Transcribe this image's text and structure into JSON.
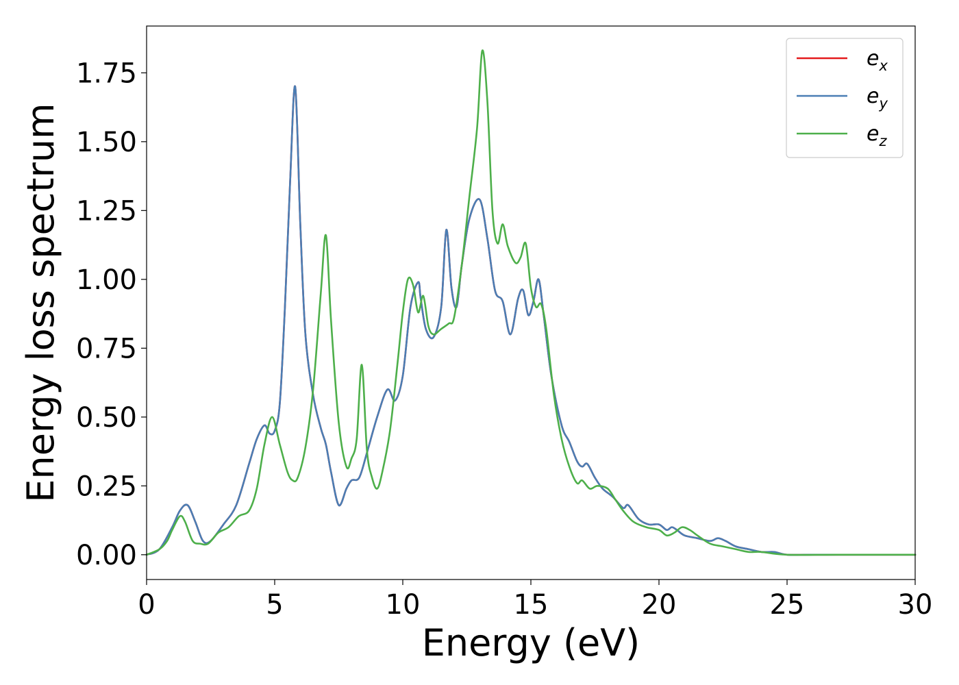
{
  "chart_data": {
    "type": "line",
    "xlabel": "Energy (eV)",
    "ylabel": "Energy loss spectrum",
    "xlim": [
      0,
      30
    ],
    "ylim": [
      -0.09,
      1.92
    ],
    "xticks": [
      0,
      5,
      10,
      15,
      20,
      25,
      30
    ],
    "xtick_labels": [
      "0",
      "5",
      "10",
      "15",
      "20",
      "25",
      "30"
    ],
    "yticks": [
      0.0,
      0.25,
      0.5,
      0.75,
      1.0,
      1.25,
      1.5,
      1.75
    ],
    "ytick_labels": [
      "0.00",
      "0.25",
      "0.50",
      "0.75",
      "1.00",
      "1.25",
      "1.50",
      "1.75"
    ],
    "grid": false,
    "legend_position": "top-right",
    "series": [
      {
        "name": "e",
        "sub": "x",
        "color": "#e41a1c",
        "x": [
          0,
          0.5,
          1.0,
          1.3,
          1.6,
          1.9,
          2.2,
          2.5,
          3.0,
          3.5,
          4.0,
          4.3,
          4.6,
          4.8,
          5.0,
          5.2,
          5.4,
          5.6,
          5.8,
          6.0,
          6.2,
          6.5,
          6.8,
          7.0,
          7.2,
          7.5,
          7.8,
          8.0,
          8.3,
          8.6,
          9.0,
          9.4,
          9.7,
          10.0,
          10.3,
          10.6,
          10.7,
          10.9,
          11.2,
          11.5,
          11.7,
          11.9,
          12.1,
          12.3,
          12.6,
          13.0,
          13.3,
          13.6,
          13.9,
          14.2,
          14.5,
          14.7,
          14.9,
          15.1,
          15.3,
          15.5,
          15.8,
          16.2,
          16.5,
          16.8,
          17.0,
          17.2,
          17.5,
          17.8,
          18.2,
          18.6,
          18.8,
          19.2,
          19.6,
          20.0,
          20.3,
          20.5,
          20.7,
          21.0,
          21.5,
          22.0,
          22.3,
          22.6,
          23.0,
          23.5,
          24.0,
          24.5,
          25.0,
          26.0,
          28.0,
          30.0
        ],
        "y": [
          0.0,
          0.02,
          0.1,
          0.16,
          0.18,
          0.12,
          0.05,
          0.05,
          0.11,
          0.18,
          0.33,
          0.42,
          0.47,
          0.44,
          0.45,
          0.55,
          0.9,
          1.35,
          1.7,
          1.2,
          0.8,
          0.58,
          0.46,
          0.4,
          0.3,
          0.18,
          0.24,
          0.27,
          0.28,
          0.37,
          0.5,
          0.6,
          0.56,
          0.65,
          0.9,
          0.99,
          0.93,
          0.82,
          0.79,
          0.9,
          1.18,
          0.97,
          0.9,
          1.05,
          1.22,
          1.29,
          1.15,
          0.96,
          0.92,
          0.8,
          0.93,
          0.96,
          0.87,
          0.92,
          1.0,
          0.87,
          0.65,
          0.47,
          0.41,
          0.34,
          0.32,
          0.33,
          0.28,
          0.24,
          0.21,
          0.17,
          0.18,
          0.13,
          0.11,
          0.11,
          0.09,
          0.1,
          0.09,
          0.07,
          0.06,
          0.05,
          0.06,
          0.05,
          0.03,
          0.02,
          0.01,
          0.01,
          0.0,
          0.0,
          0.0,
          0.0
        ]
      },
      {
        "name": "e",
        "sub": "y",
        "color": "#4a7eb4",
        "x": [
          0,
          0.5,
          1.0,
          1.3,
          1.6,
          1.9,
          2.2,
          2.5,
          3.0,
          3.5,
          4.0,
          4.3,
          4.6,
          4.8,
          5.0,
          5.2,
          5.4,
          5.6,
          5.8,
          6.0,
          6.2,
          6.5,
          6.8,
          7.0,
          7.2,
          7.5,
          7.8,
          8.0,
          8.3,
          8.6,
          9.0,
          9.4,
          9.7,
          10.0,
          10.3,
          10.6,
          10.7,
          10.9,
          11.2,
          11.5,
          11.7,
          11.9,
          12.1,
          12.3,
          12.6,
          13.0,
          13.3,
          13.6,
          13.9,
          14.2,
          14.5,
          14.7,
          14.9,
          15.1,
          15.3,
          15.5,
          15.8,
          16.2,
          16.5,
          16.8,
          17.0,
          17.2,
          17.5,
          17.8,
          18.2,
          18.6,
          18.8,
          19.2,
          19.6,
          20.0,
          20.3,
          20.5,
          20.7,
          21.0,
          21.5,
          22.0,
          22.3,
          22.6,
          23.0,
          23.5,
          24.0,
          24.5,
          25.0,
          26.0,
          28.0,
          30.0
        ],
        "y": [
          0.0,
          0.02,
          0.1,
          0.16,
          0.18,
          0.12,
          0.05,
          0.05,
          0.11,
          0.18,
          0.33,
          0.42,
          0.47,
          0.44,
          0.45,
          0.55,
          0.9,
          1.35,
          1.7,
          1.2,
          0.8,
          0.58,
          0.46,
          0.4,
          0.3,
          0.18,
          0.24,
          0.27,
          0.28,
          0.37,
          0.5,
          0.6,
          0.56,
          0.65,
          0.9,
          0.99,
          0.93,
          0.82,
          0.79,
          0.9,
          1.18,
          0.97,
          0.9,
          1.05,
          1.22,
          1.29,
          1.15,
          0.96,
          0.92,
          0.8,
          0.93,
          0.96,
          0.87,
          0.92,
          1.0,
          0.87,
          0.65,
          0.47,
          0.41,
          0.34,
          0.32,
          0.33,
          0.28,
          0.24,
          0.21,
          0.17,
          0.18,
          0.13,
          0.11,
          0.11,
          0.09,
          0.1,
          0.09,
          0.07,
          0.06,
          0.05,
          0.06,
          0.05,
          0.03,
          0.02,
          0.01,
          0.01,
          0.0,
          0.0,
          0.0,
          0.0
        ]
      },
      {
        "name": "e",
        "sub": "z",
        "color": "#4daf4a",
        "x": [
          0,
          0.5,
          0.8,
          1.0,
          1.3,
          1.5,
          1.8,
          2.1,
          2.4,
          2.8,
          3.2,
          3.6,
          4.0,
          4.3,
          4.6,
          4.9,
          5.2,
          5.5,
          5.7,
          5.9,
          6.2,
          6.5,
          6.8,
          7.0,
          7.2,
          7.5,
          7.8,
          8.0,
          8.2,
          8.4,
          8.6,
          8.8,
          9.0,
          9.2,
          9.5,
          9.8,
          10.0,
          10.2,
          10.4,
          10.6,
          10.8,
          11.0,
          11.2,
          11.5,
          11.8,
          12.0,
          12.3,
          12.6,
          12.9,
          13.1,
          13.3,
          13.5,
          13.7,
          13.9,
          14.1,
          14.4,
          14.6,
          14.8,
          15.0,
          15.2,
          15.4,
          15.6,
          15.9,
          16.2,
          16.5,
          16.8,
          17.0,
          17.3,
          17.6,
          18.0,
          18.3,
          18.6,
          19.0,
          19.5,
          20.0,
          20.3,
          20.6,
          20.9,
          21.2,
          21.5,
          22.0,
          22.5,
          23.0,
          23.5,
          24.0,
          25.0,
          27.0,
          30.0
        ],
        "y": [
          0.0,
          0.02,
          0.05,
          0.09,
          0.14,
          0.12,
          0.05,
          0.04,
          0.04,
          0.08,
          0.1,
          0.14,
          0.16,
          0.24,
          0.4,
          0.5,
          0.4,
          0.3,
          0.27,
          0.28,
          0.39,
          0.6,
          0.95,
          1.16,
          0.85,
          0.48,
          0.32,
          0.35,
          0.42,
          0.69,
          0.38,
          0.28,
          0.24,
          0.3,
          0.45,
          0.7,
          0.88,
          1.0,
          0.98,
          0.88,
          0.94,
          0.83,
          0.8,
          0.82,
          0.84,
          0.86,
          1.05,
          1.3,
          1.55,
          1.83,
          1.65,
          1.25,
          1.13,
          1.2,
          1.12,
          1.06,
          1.08,
          1.13,
          0.97,
          0.9,
          0.91,
          0.82,
          0.58,
          0.42,
          0.32,
          0.26,
          0.27,
          0.24,
          0.25,
          0.24,
          0.2,
          0.16,
          0.12,
          0.1,
          0.09,
          0.07,
          0.08,
          0.1,
          0.09,
          0.07,
          0.04,
          0.03,
          0.02,
          0.01,
          0.01,
          0.0,
          0.0,
          0.0
        ]
      }
    ]
  }
}
